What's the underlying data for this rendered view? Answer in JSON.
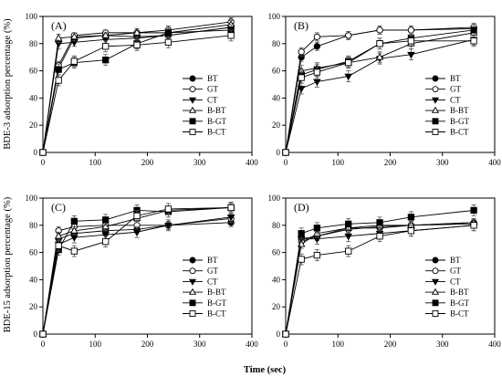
{
  "figure": {
    "ylabel_top": "BDE-3 adsorption percentage (%)",
    "ylabel_bottom": "BDE-15 adsorption percentage (%)",
    "xlabel": "Time (sec)"
  },
  "chart_data": [
    {
      "type": "line",
      "panel_label": "(A)",
      "xlabel": "",
      "ylabel": "",
      "xlim": [
        0,
        400
      ],
      "ylim": [
        0,
        100
      ],
      "xticks": [
        0,
        100,
        200,
        300,
        400
      ],
      "yticks": [
        0,
        20,
        40,
        60,
        80,
        100
      ],
      "legend": "right",
      "x": [
        0,
        30,
        60,
        120,
        180,
        240,
        360
      ],
      "series": [
        {
          "name": "BT",
          "marker": "circle-filled",
          "values": [
            0,
            62,
            84,
            86,
            85,
            86,
            92
          ],
          "err": [
            0,
            3,
            3,
            2,
            3,
            3,
            3
          ]
        },
        {
          "name": "GT",
          "marker": "circle-open",
          "values": [
            0,
            64,
            86,
            88,
            88,
            90,
            96
          ],
          "err": [
            0,
            3,
            2,
            2,
            3,
            3,
            3
          ]
        },
        {
          "name": "CT",
          "marker": "tri-down-filled",
          "values": [
            0,
            80,
            81,
            83,
            84,
            86,
            92
          ],
          "err": [
            0,
            4,
            3,
            3,
            3,
            3,
            3
          ]
        },
        {
          "name": "B-BT",
          "marker": "tri-up-open",
          "values": [
            0,
            84,
            85,
            86,
            88,
            88,
            94
          ],
          "err": [
            0,
            3,
            3,
            2,
            3,
            3,
            3
          ]
        },
        {
          "name": "B-GT",
          "marker": "square-filled",
          "values": [
            0,
            61,
            66,
            68,
            80,
            88,
            90
          ],
          "err": [
            0,
            4,
            4,
            4,
            4,
            4,
            4
          ]
        },
        {
          "name": "B-CT",
          "marker": "square-open",
          "values": [
            0,
            53,
            67,
            78,
            79,
            81,
            86
          ],
          "err": [
            0,
            4,
            4,
            4,
            4,
            4,
            4
          ]
        }
      ]
    },
    {
      "type": "line",
      "panel_label": "(B)",
      "xlabel": "",
      "ylabel": "",
      "xlim": [
        0,
        400
      ],
      "ylim": [
        0,
        100
      ],
      "xticks": [
        0,
        100,
        200,
        300,
        400
      ],
      "yticks": [
        0,
        20,
        40,
        60,
        80,
        100
      ],
      "legend": "right",
      "x": [
        0,
        30,
        60,
        120,
        180,
        240,
        360
      ],
      "series": [
        {
          "name": "BT",
          "marker": "circle-filled",
          "values": [
            0,
            70,
            78,
            86,
            90,
            90,
            91
          ],
          "err": [
            0,
            3,
            3,
            3,
            3,
            3,
            3
          ]
        },
        {
          "name": "GT",
          "marker": "circle-open",
          "values": [
            0,
            74,
            85,
            86,
            90,
            90,
            92
          ],
          "err": [
            0,
            3,
            3,
            3,
            3,
            3,
            3
          ]
        },
        {
          "name": "CT",
          "marker": "tri-down-filled",
          "values": [
            0,
            47,
            52,
            56,
            69,
            72,
            83
          ],
          "err": [
            0,
            4,
            4,
            4,
            4,
            4,
            4
          ]
        },
        {
          "name": "B-BT",
          "marker": "tri-up-open",
          "values": [
            0,
            60,
            62,
            66,
            70,
            80,
            88
          ],
          "err": [
            0,
            4,
            4,
            4,
            4,
            4,
            4
          ]
        },
        {
          "name": "B-GT",
          "marker": "square-filled",
          "values": [
            0,
            57,
            61,
            67,
            80,
            84,
            90
          ],
          "err": [
            0,
            4,
            4,
            4,
            4,
            4,
            4
          ]
        },
        {
          "name": "B-CT",
          "marker": "square-open",
          "values": [
            0,
            55,
            59,
            66,
            80,
            82,
            82
          ],
          "err": [
            0,
            4,
            4,
            4,
            4,
            4,
            4
          ]
        }
      ]
    },
    {
      "type": "line",
      "panel_label": "(C)",
      "xlabel": "",
      "ylabel": "",
      "xlim": [
        0,
        400
      ],
      "ylim": [
        0,
        100
      ],
      "xticks": [
        0,
        100,
        200,
        300,
        400
      ],
      "yticks": [
        0,
        20,
        40,
        60,
        80,
        100
      ],
      "legend": "right",
      "x": [
        0,
        30,
        60,
        120,
        180,
        240,
        360
      ],
      "series": [
        {
          "name": "BT",
          "marker": "circle-filled",
          "values": [
            0,
            70,
            74,
            76,
            77,
            80,
            82
          ],
          "err": [
            0,
            3,
            3,
            3,
            3,
            3,
            3
          ]
        },
        {
          "name": "GT",
          "marker": "circle-open",
          "values": [
            0,
            76,
            79,
            80,
            80,
            80,
            85
          ],
          "err": [
            0,
            3,
            3,
            3,
            3,
            3,
            3
          ]
        },
        {
          "name": "CT",
          "marker": "tri-down-filled",
          "values": [
            0,
            66,
            71,
            73,
            75,
            80,
            86
          ],
          "err": [
            0,
            4,
            4,
            4,
            4,
            4,
            4
          ]
        },
        {
          "name": "B-BT",
          "marker": "tri-up-open",
          "values": [
            0,
            72,
            76,
            79,
            85,
            91,
            93
          ],
          "err": [
            0,
            3,
            3,
            3,
            3,
            3,
            3
          ]
        },
        {
          "name": "B-GT",
          "marker": "square-filled",
          "values": [
            0,
            62,
            83,
            84,
            91,
            90,
            93
          ],
          "err": [
            0,
            4,
            4,
            4,
            4,
            4,
            4
          ]
        },
        {
          "name": "B-CT",
          "marker": "square-open",
          "values": [
            0,
            65,
            61,
            68,
            87,
            92,
            93
          ],
          "err": [
            0,
            4,
            4,
            4,
            4,
            4,
            4
          ]
        }
      ]
    },
    {
      "type": "line",
      "panel_label": "(D)",
      "xlabel": "",
      "ylabel": "",
      "xlim": [
        0,
        400
      ],
      "ylim": [
        0,
        100
      ],
      "xticks": [
        0,
        100,
        200,
        300,
        400
      ],
      "yticks": [
        0,
        20,
        40,
        60,
        80,
        100
      ],
      "legend": "right",
      "x": [
        0,
        30,
        60,
        120,
        180,
        240,
        360
      ],
      "series": [
        {
          "name": "BT",
          "marker": "circle-filled",
          "values": [
            0,
            70,
            72,
            78,
            78,
            80,
            82
          ],
          "err": [
            0,
            3,
            3,
            3,
            3,
            3,
            3
          ]
        },
        {
          "name": "GT",
          "marker": "circle-open",
          "values": [
            0,
            68,
            72,
            77,
            79,
            80,
            81
          ],
          "err": [
            0,
            3,
            3,
            3,
            3,
            3,
            3
          ]
        },
        {
          "name": "CT",
          "marker": "tri-down-filled",
          "values": [
            0,
            70,
            70,
            72,
            74,
            76,
            80
          ],
          "err": [
            0,
            4,
            4,
            4,
            4,
            4,
            4
          ]
        },
        {
          "name": "B-BT",
          "marker": "tri-up-open",
          "values": [
            0,
            66,
            74,
            78,
            80,
            80,
            82
          ],
          "err": [
            0,
            3,
            3,
            3,
            3,
            3,
            3
          ]
        },
        {
          "name": "B-GT",
          "marker": "square-filled",
          "values": [
            0,
            74,
            78,
            81,
            82,
            86,
            91
          ],
          "err": [
            0,
            4,
            4,
            4,
            4,
            4,
            4
          ]
        },
        {
          "name": "B-CT",
          "marker": "square-open",
          "values": [
            0,
            55,
            58,
            61,
            72,
            76,
            80
          ],
          "err": [
            0,
            4,
            4,
            4,
            4,
            4,
            4
          ]
        }
      ]
    }
  ]
}
